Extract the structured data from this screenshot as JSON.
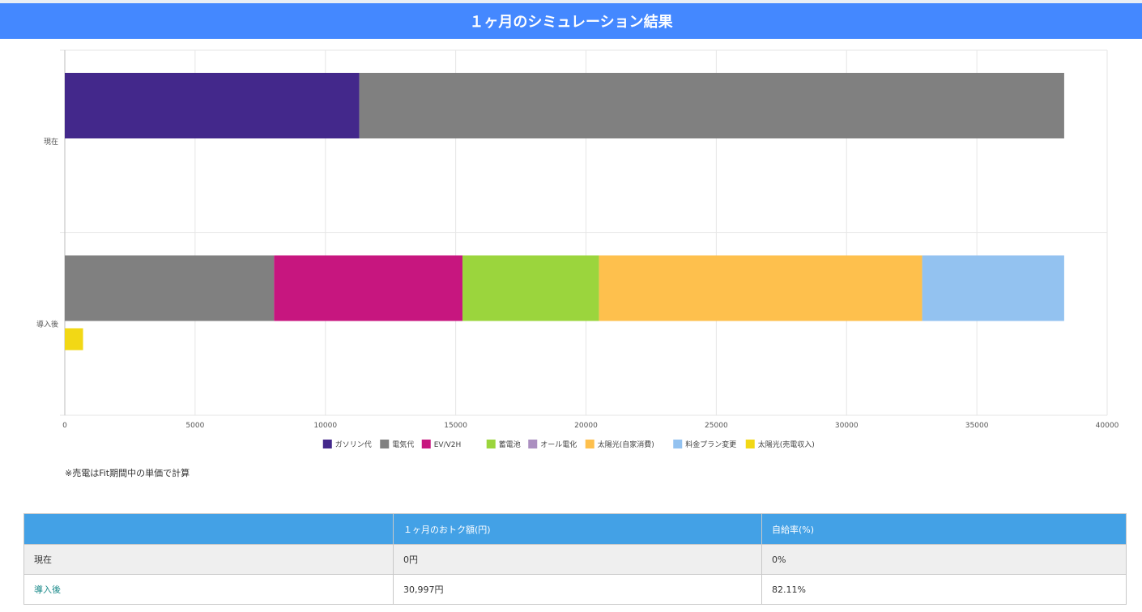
{
  "header": {
    "title": "１ヶ月のシミュレーション結果"
  },
  "note": "※売電はFit期間中の単価で計算",
  "chart_data": {
    "type": "bar",
    "orientation": "horizontal",
    "stacked": true,
    "categories": [
      "現在",
      "導入後"
    ],
    "xlim": [
      0,
      40000
    ],
    "xticks": [
      0,
      5000,
      10000,
      15000,
      20000,
      25000,
      30000,
      35000,
      40000
    ],
    "grid": true,
    "legend_position": "bottom",
    "series": [
      {
        "name": "ガソリン代",
        "color": "#43288b",
        "stack": "main",
        "values": [
          11300,
          0
        ]
      },
      {
        "name": "電気代",
        "color": "#808080",
        "stack": "main",
        "values": [
          27050,
          8030
        ]
      },
      {
        "name": "EV/V2H",
        "color": "#c7167f",
        "stack": "main",
        "values": [
          0,
          7230
        ]
      },
      {
        "name": "蓄電池",
        "color": "#9bd53d",
        "stack": "main",
        "values": [
          0,
          5240
        ]
      },
      {
        "name": "オール電化",
        "color": "#ab8fc0",
        "stack": "main",
        "values": [
          0,
          0
        ]
      },
      {
        "name": "太陽光(自家消費)",
        "color": "#fec04d",
        "stack": "main",
        "values": [
          0,
          12400
        ]
      },
      {
        "name": "料金プラン変更",
        "color": "#93c2f0",
        "stack": "main",
        "values": [
          0,
          5450
        ]
      },
      {
        "name": "太陽光(売電収入)",
        "color": "#f2d815",
        "stack": "sell",
        "values": [
          0,
          700
        ]
      }
    ]
  },
  "table": {
    "headers": [
      "",
      "１ヶ月のおトク額(円)",
      "自給率(%)"
    ],
    "rows": [
      [
        "現在",
        "0円",
        "0%"
      ],
      [
        "導入後",
        "30,997円",
        "82.11%"
      ]
    ]
  }
}
